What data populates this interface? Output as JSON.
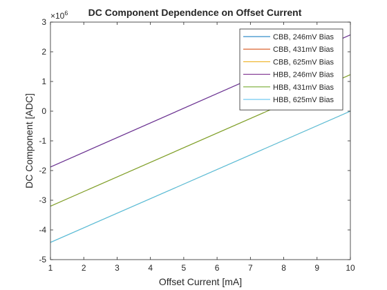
{
  "chart_data": {
    "type": "line",
    "title": "DC Component Dependence on Offset Current",
    "xlabel": "Offset Current [mA]",
    "ylabel": "DC Component [ADC]",
    "y_exponent_base": "×10",
    "y_exponent_power": "6",
    "xlim": [
      1,
      10
    ],
    "ylim": [
      -5,
      3
    ],
    "x_ticks": [
      1,
      2,
      3,
      4,
      5,
      6,
      7,
      8,
      9,
      10
    ],
    "y_ticks": [
      -5,
      -4,
      -3,
      -2,
      -1,
      0,
      1,
      2,
      3
    ],
    "grid": false,
    "legend_position": "top-right",
    "x": [
      1,
      10
    ],
    "series": [
      {
        "name": "CBB, 246mV Bias",
        "color": "#0072BD",
        "y_millions": [
          -1.88,
          2.57
        ]
      },
      {
        "name": "CBB, 431mV Bias",
        "color": "#D95319",
        "y_millions": [
          -3.2,
          1.23
        ]
      },
      {
        "name": "CBB, 625mV Bias",
        "color": "#EDB120",
        "y_millions": [
          -4.42,
          0.0
        ]
      },
      {
        "name": "HBB, 246mV Bias",
        "color": "#7E2F8E",
        "y_millions": [
          -1.88,
          2.57
        ]
      },
      {
        "name": "HBB, 431mV Bias",
        "color": "#77AC30",
        "y_millions": [
          -3.2,
          1.23
        ]
      },
      {
        "name": "HBB, 625mV Bias",
        "color": "#4DBEEE",
        "y_millions": [
          -4.42,
          0.0
        ]
      }
    ]
  }
}
